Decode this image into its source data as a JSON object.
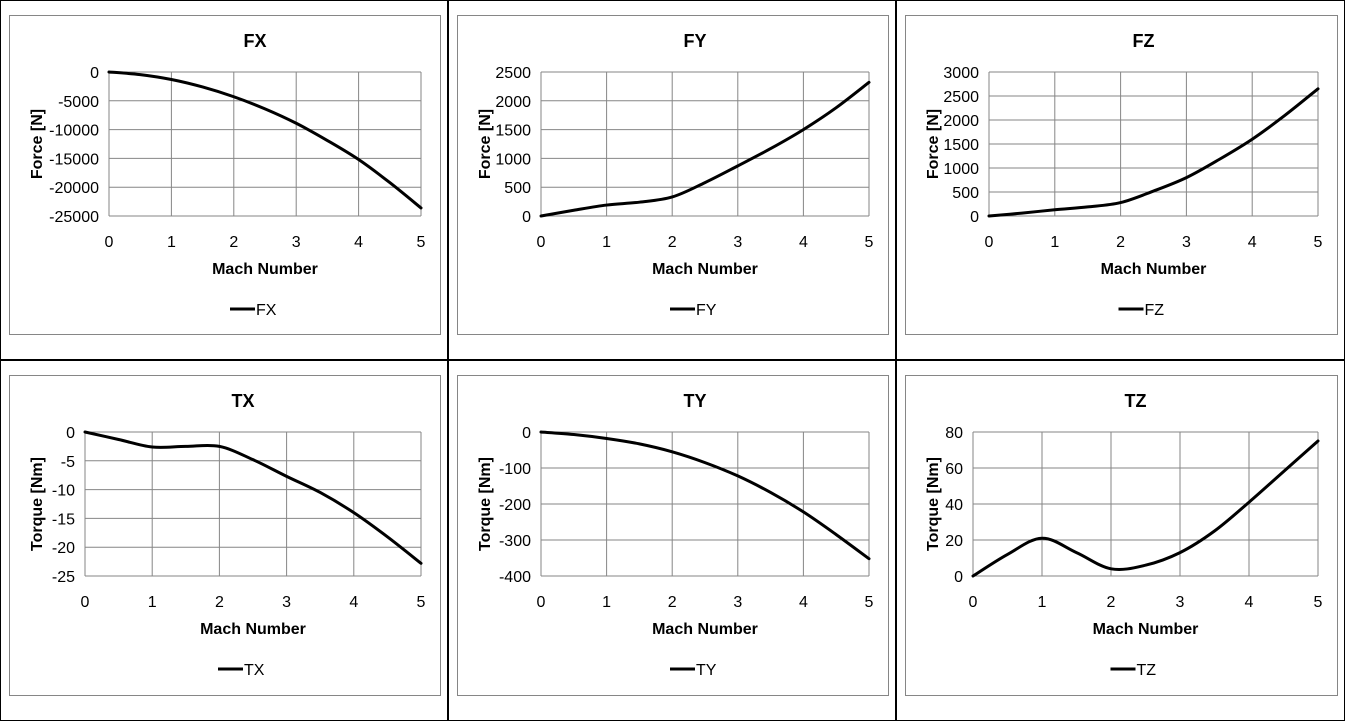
{
  "chart_data": [
    {
      "type": "line",
      "title": "FX",
      "xlabel": "Mach Number",
      "ylabel": "Force [N]",
      "xlim": [
        0,
        5
      ],
      "ylim": [
        -25000,
        0
      ],
      "xticks": [
        0,
        1,
        2,
        3,
        4,
        5
      ],
      "yticks": [
        0,
        -5000,
        -10000,
        -15000,
        -20000,
        -25000
      ],
      "grid": true,
      "legend": "bottom",
      "series": [
        {
          "name": "FX",
          "color": "#000000",
          "x": [
            0,
            0.5,
            1,
            1.5,
            2,
            2.5,
            3,
            3.5,
            4,
            4.5,
            5
          ],
          "y": [
            0,
            -450,
            -1300,
            -2600,
            -4300,
            -6400,
            -8900,
            -11900,
            -15200,
            -19200,
            -23600
          ]
        }
      ]
    },
    {
      "type": "line",
      "title": "FY",
      "xlabel": "Mach Number",
      "ylabel": "Force [N]",
      "xlim": [
        0,
        5
      ],
      "ylim": [
        0,
        2500
      ],
      "xticks": [
        0,
        1,
        2,
        3,
        4,
        5
      ],
      "yticks": [
        0,
        500,
        1000,
        1500,
        2000,
        2500
      ],
      "grid": true,
      "legend": "bottom",
      "series": [
        {
          "name": "FY",
          "color": "#000000",
          "x": [
            0,
            0.5,
            1,
            1.5,
            2,
            2.5,
            3,
            3.5,
            4,
            4.5,
            5
          ],
          "y": [
            0,
            100,
            190,
            240,
            330,
            580,
            870,
            1170,
            1500,
            1880,
            2320
          ]
        }
      ]
    },
    {
      "type": "line",
      "title": "FZ",
      "xlabel": "Mach Number",
      "ylabel": "Force [N]",
      "xlim": [
        0,
        5
      ],
      "ylim": [
        0,
        3000
      ],
      "xticks": [
        0,
        1,
        2,
        3,
        4,
        5
      ],
      "yticks": [
        0,
        500,
        1000,
        1500,
        2000,
        2500,
        3000
      ],
      "grid": true,
      "legend": "bottom",
      "series": [
        {
          "name": "FZ",
          "color": "#000000",
          "x": [
            0,
            0.5,
            1,
            1.5,
            2,
            2.5,
            3,
            3.5,
            4,
            4.5,
            5
          ],
          "y": [
            0,
            60,
            130,
            190,
            280,
            520,
            800,
            1180,
            1600,
            2100,
            2650
          ]
        }
      ]
    },
    {
      "type": "line",
      "title": "TX",
      "xlabel": "Mach Number",
      "ylabel": "Torque [Nm]",
      "xlim": [
        0,
        5
      ],
      "ylim": [
        -25,
        0
      ],
      "xticks": [
        0,
        1,
        2,
        3,
        4,
        5
      ],
      "yticks": [
        0,
        -5,
        -10,
        -15,
        -20,
        -25
      ],
      "grid": true,
      "legend": "bottom",
      "series": [
        {
          "name": "TX",
          "color": "#000000",
          "x": [
            0,
            0.5,
            1,
            1.5,
            2,
            2.5,
            3,
            3.5,
            4,
            4.5,
            5
          ],
          "y": [
            0,
            -1.3,
            -2.6,
            -2.5,
            -2.5,
            -4.8,
            -7.7,
            -10.5,
            -14,
            -18.2,
            -22.8
          ]
        }
      ]
    },
    {
      "type": "line",
      "title": "TY",
      "xlabel": "Mach Number",
      "ylabel": "Torque [Nm]",
      "xlim": [
        0,
        5
      ],
      "ylim": [
        -400,
        0
      ],
      "xticks": [
        0,
        1,
        2,
        3,
        4,
        5
      ],
      "yticks": [
        0,
        -100,
        -200,
        -300,
        -400
      ],
      "grid": true,
      "legend": "bottom",
      "series": [
        {
          "name": "TY",
          "color": "#000000",
          "x": [
            0,
            0.5,
            1,
            1.5,
            2,
            2.5,
            3,
            3.5,
            4,
            4.5,
            5
          ],
          "y": [
            0,
            -7,
            -18,
            -33,
            -55,
            -85,
            -122,
            -168,
            -222,
            -285,
            -352
          ]
        }
      ]
    },
    {
      "type": "line",
      "title": "TZ",
      "xlabel": "Mach Number",
      "ylabel": "Torque [Nm]",
      "xlim": [
        0,
        5
      ],
      "ylim": [
        0,
        80
      ],
      "xticks": [
        0,
        1,
        2,
        3,
        4,
        5
      ],
      "yticks": [
        0,
        20,
        40,
        60,
        80
      ],
      "grid": true,
      "legend": "bottom",
      "series": [
        {
          "name": "TZ",
          "color": "#000000",
          "x": [
            0,
            0.5,
            1,
            1.5,
            2,
            2.5,
            3,
            3.5,
            4,
            4.5,
            5
          ],
          "y": [
            0,
            12,
            21,
            13,
            4,
            6,
            13,
            25,
            41,
            58,
            75
          ]
        }
      ]
    }
  ]
}
